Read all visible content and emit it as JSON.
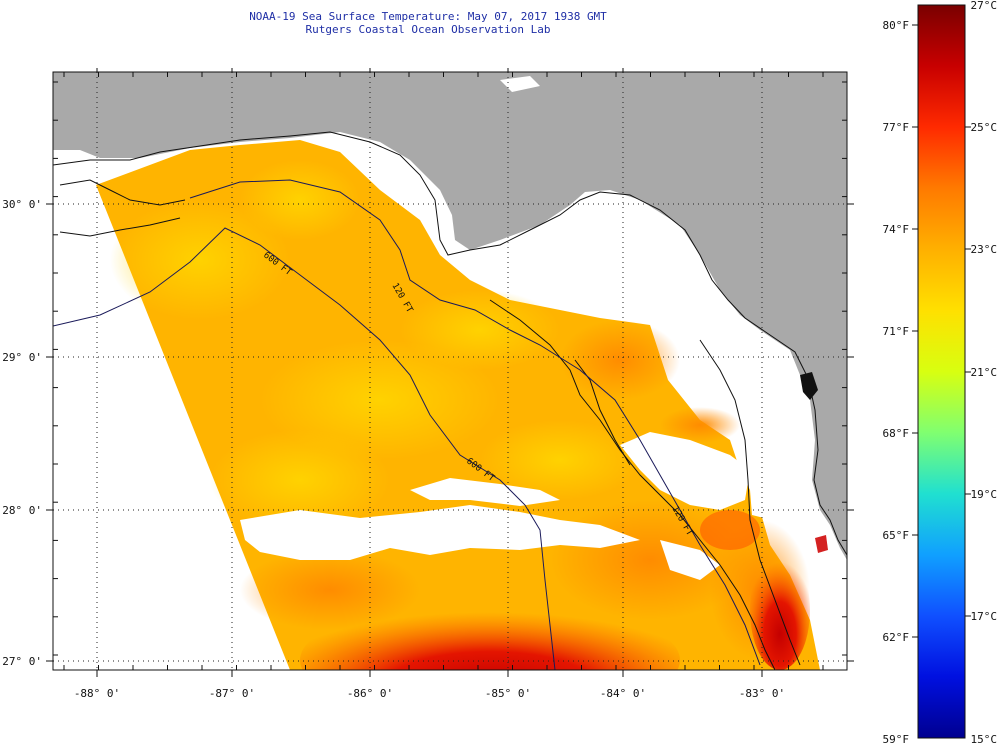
{
  "title": {
    "line1": "NOAA-19 Sea Surface Temperature:  May 07, 2017 1938 GMT",
    "line2": "Rutgers Coastal Ocean Observation Lab"
  },
  "map": {
    "lon_labels": [
      "-88° 0'",
      "-87° 0'",
      "-86° 0'",
      "-85° 0'",
      "-84° 0'",
      "-83° 0'"
    ],
    "lat_labels": [
      "30° 0'",
      "29° 0'",
      "28° 0'",
      "27° 0'"
    ],
    "contour_labels": [
      "600 FT",
      "120 FT",
      "600 FT",
      "120 FT"
    ],
    "colors": {
      "land": "#a9a9a9",
      "cloud": "#ffffff",
      "frame": "#111111"
    }
  },
  "colorbar": {
    "f_labels": [
      "80°F",
      "77°F",
      "74°F",
      "71°F",
      "68°F",
      "65°F",
      "62°F",
      "59°F"
    ],
    "c_labels": [
      "27°C",
      "25°C",
      "23°C",
      "21°C",
      "19°C",
      "17°C",
      "15°C"
    ],
    "gradient": [
      "#7a0000",
      "#c80000",
      "#ff2a00",
      "#ff7a00",
      "#ffb000",
      "#ffe000",
      "#d8ff10",
      "#80ff70",
      "#20e0d0",
      "#10a0ff",
      "#1050ff",
      "#0010e0",
      "#000090"
    ]
  }
}
